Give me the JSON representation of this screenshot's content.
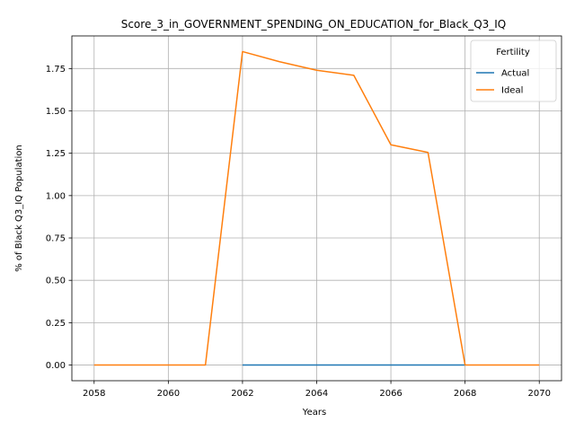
{
  "chart_data": {
    "type": "line",
    "title": "Score_3_in_GOVERNMENT_SPENDING_ON_EDUCATION_for_Black_Q3_IQ",
    "xlabel": "Years",
    "ylabel": "% of Black Q3_IQ Population",
    "xlim": [
      2057.4,
      2070.6
    ],
    "ylim": [
      -0.0925,
      1.9425
    ],
    "xticks": [
      2058,
      2060,
      2062,
      2064,
      2066,
      2068,
      2070
    ],
    "yticks": [
      0.0,
      0.25,
      0.5,
      0.75,
      1.0,
      1.25,
      1.5,
      1.75
    ],
    "ytick_labels": [
      "0.00",
      "0.25",
      "0.50",
      "0.75",
      "1.00",
      "1.25",
      "1.50",
      "1.75"
    ],
    "grid": true,
    "legend": {
      "title": "Fertility",
      "placement": "top-right"
    },
    "series": [
      {
        "name": "Actual",
        "color": "#1f77b4",
        "x": [
          2062,
          2063,
          2064,
          2065,
          2066,
          2067,
          2068
        ],
        "y": [
          0,
          0,
          0,
          0,
          0,
          0,
          0
        ]
      },
      {
        "name": "Ideal",
        "color": "#ff7f0e",
        "x": [
          2058,
          2059,
          2060,
          2061,
          2062,
          2063,
          2064,
          2065,
          2066,
          2067,
          2068,
          2069,
          2070
        ],
        "y": [
          0,
          0,
          0,
          0,
          1.85,
          1.79,
          1.74,
          1.71,
          1.3,
          1.255,
          0,
          0,
          0
        ]
      }
    ]
  }
}
